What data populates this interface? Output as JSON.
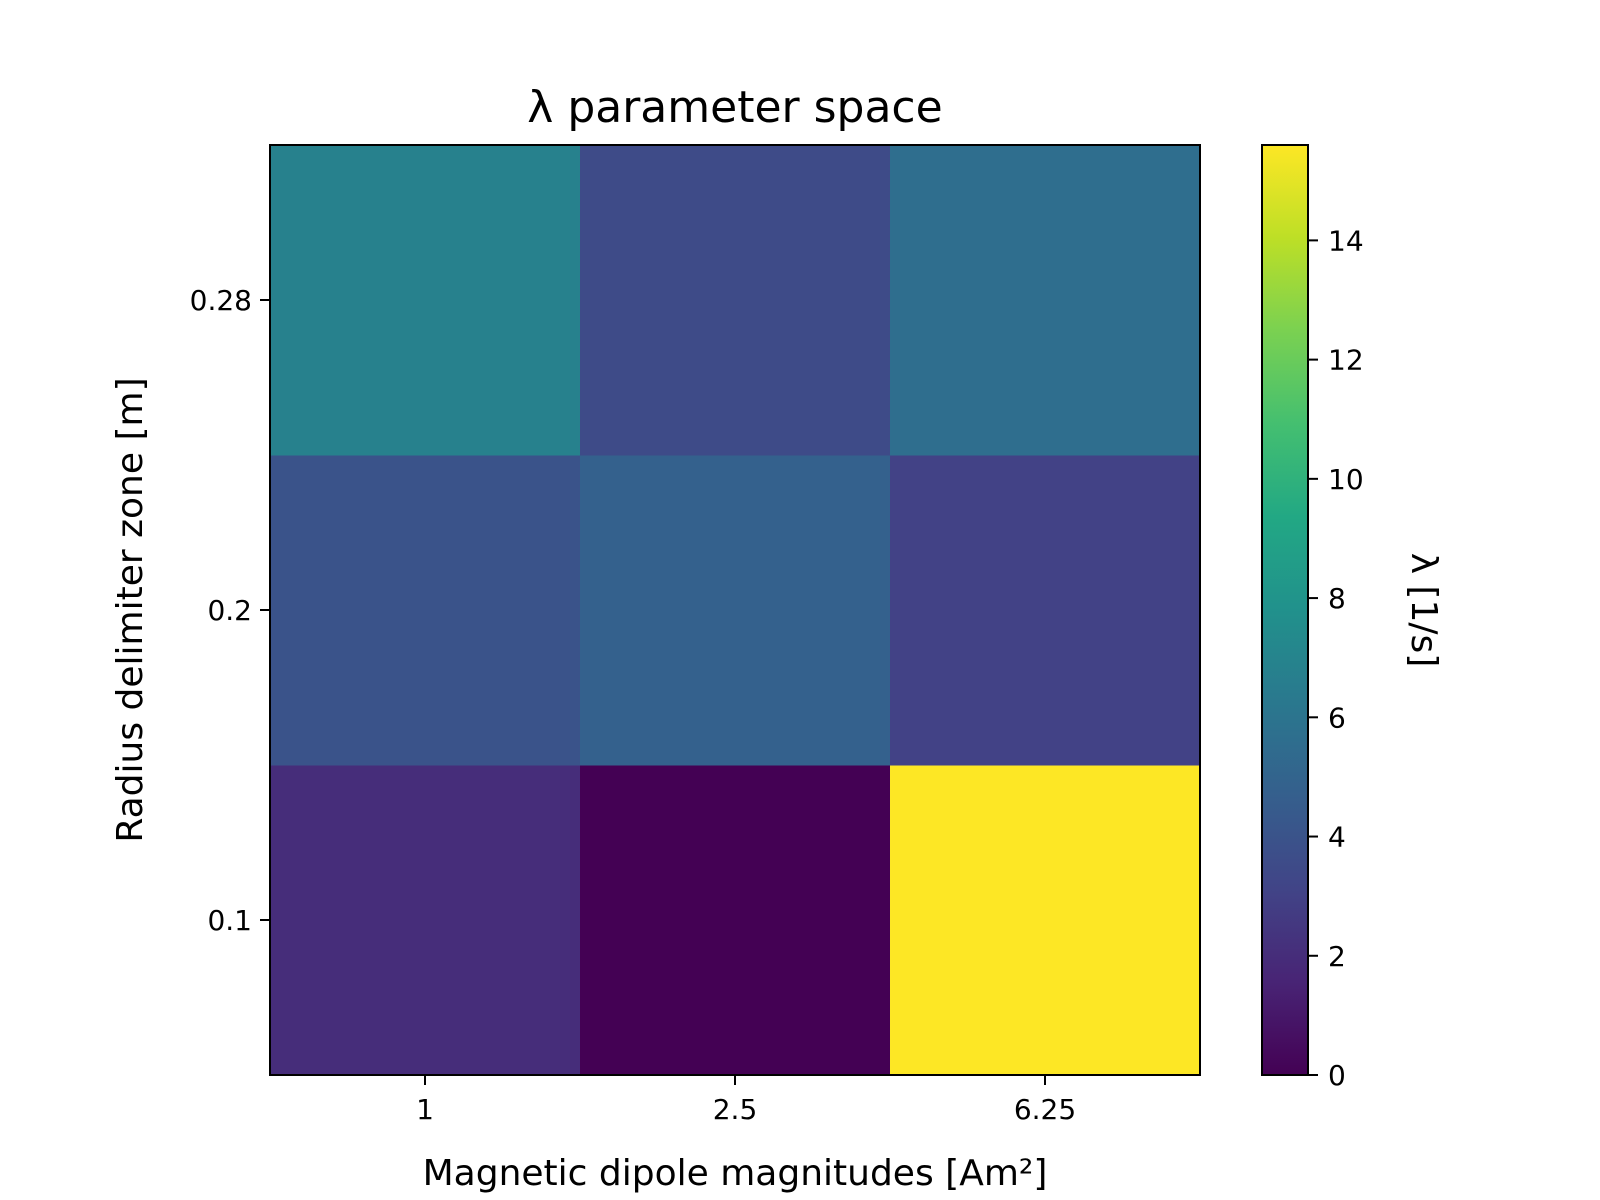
{
  "chart_data": {
    "type": "heatmap",
    "title": "λ parameter space",
    "xlabel": "Magnetic dipole magnitudes [Am²]",
    "ylabel": "Radius delimiter zone [m]",
    "x_categories": [
      "1",
      "2.5",
      "6.25"
    ],
    "y_categories": [
      "0.1",
      "0.2",
      "0.28"
    ],
    "values": [
      [
        2.0,
        0.0,
        15.6
      ],
      [
        4.0,
        4.8,
        3.0
      ],
      [
        6.8,
        3.5,
        5.6
      ]
    ],
    "colorbar": {
      "label": "λ [1/s]",
      "range": [
        0,
        15.6
      ],
      "ticks": [
        "0",
        "2",
        "4",
        "6",
        "8",
        "10",
        "12",
        "14"
      ],
      "colormap": "viridis"
    },
    "grid": false
  }
}
